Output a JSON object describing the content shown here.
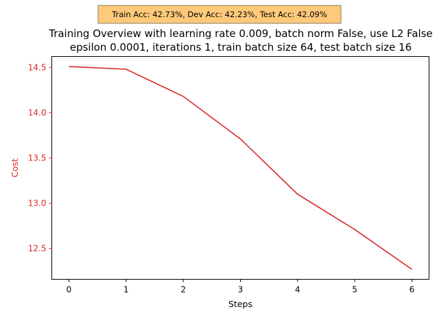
{
  "chart_data": {
    "type": "line",
    "title_line1": "Training Overview with learning rate 0.009, batch norm False, use L2 False",
    "title_line2": "epsilon 0.0001, iterations 1, train batch size 64, test batch size 16",
    "annotation": "Train Acc: 42.73%, Dev Acc: 42.23%, Test Acc: 42.09%",
    "xlabel": "Steps",
    "ylabel": "Cost",
    "x": [
      0,
      1,
      2,
      3,
      4,
      5,
      6
    ],
    "values": [
      14.51,
      14.48,
      14.18,
      13.71,
      13.1,
      12.71,
      12.27
    ],
    "xlim": [
      -0.3,
      6.3
    ],
    "ylim": [
      12.16,
      14.62
    ],
    "xticks": [
      0,
      1,
      2,
      3,
      4,
      5,
      6
    ],
    "xtick_labels": [
      "0",
      "1",
      "2",
      "3",
      "4",
      "5",
      "6"
    ],
    "yticks": [
      12.5,
      13.0,
      13.5,
      14.0,
      14.5
    ],
    "ytick_labels": [
      "12.5",
      "13.0",
      "13.5",
      "14.0",
      "14.5"
    ],
    "grid": false,
    "colors": {
      "line": "#d62728",
      "ylabel": "#d62728",
      "annotation_bg": "#ffc97a",
      "annotation_border": "#8a7a66"
    }
  }
}
